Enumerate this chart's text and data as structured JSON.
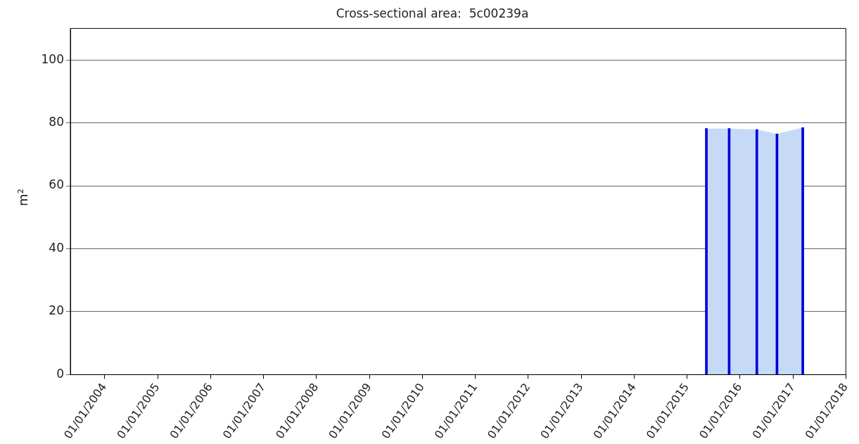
{
  "chart_data": {
    "type": "area",
    "title": "Cross-sectional area:  5c00239a",
    "ylabel": "m²",
    "x": [
      "2015-05-15",
      "2015-10-19",
      "2016-04-27",
      "2016-09-13",
      "2017-03-10"
    ],
    "series": [
      {
        "color": "#c6daf6",
        "values": [
          78.2,
          78.2,
          77.9,
          76.5,
          78.5
        ]
      },
      {
        "type": "bar",
        "color": "#0000dd",
        "values": [
          78.2,
          78.2,
          77.9,
          76.5,
          78.5
        ]
      }
    ],
    "xlim": [
      "2003-05-10",
      "2018-01-01"
    ],
    "xticks": [
      {
        "value": "2004-01-01",
        "label": "01/01/2004"
      },
      {
        "value": "2005-01-01",
        "label": "01/01/2005"
      },
      {
        "value": "2006-01-01",
        "label": "01/01/2006"
      },
      {
        "value": "2007-01-01",
        "label": "01/01/2007"
      },
      {
        "value": "2008-01-01",
        "label": "01/01/2008"
      },
      {
        "value": "2009-01-01",
        "label": "01/01/2009"
      },
      {
        "value": "2010-01-01",
        "label": "01/01/2010"
      },
      {
        "value": "2011-01-01",
        "label": "01/01/2011"
      },
      {
        "value": "2012-01-01",
        "label": "01/01/2012"
      },
      {
        "value": "2013-01-01",
        "label": "01/01/2013"
      },
      {
        "value": "2014-01-01",
        "label": "01/01/2014"
      },
      {
        "value": "2015-01-01",
        "label": "01/01/2015"
      },
      {
        "value": "2016-01-01",
        "label": "01/01/2016"
      },
      {
        "value": "2017-01-01",
        "label": "01/01/2017"
      },
      {
        "value": "2018-01-01",
        "label": "01/01/2018"
      }
    ],
    "ylim": [
      0,
      110
    ],
    "yticks": [
      0,
      20,
      40,
      60,
      80,
      100
    ],
    "grid": "y",
    "legend": false
  }
}
